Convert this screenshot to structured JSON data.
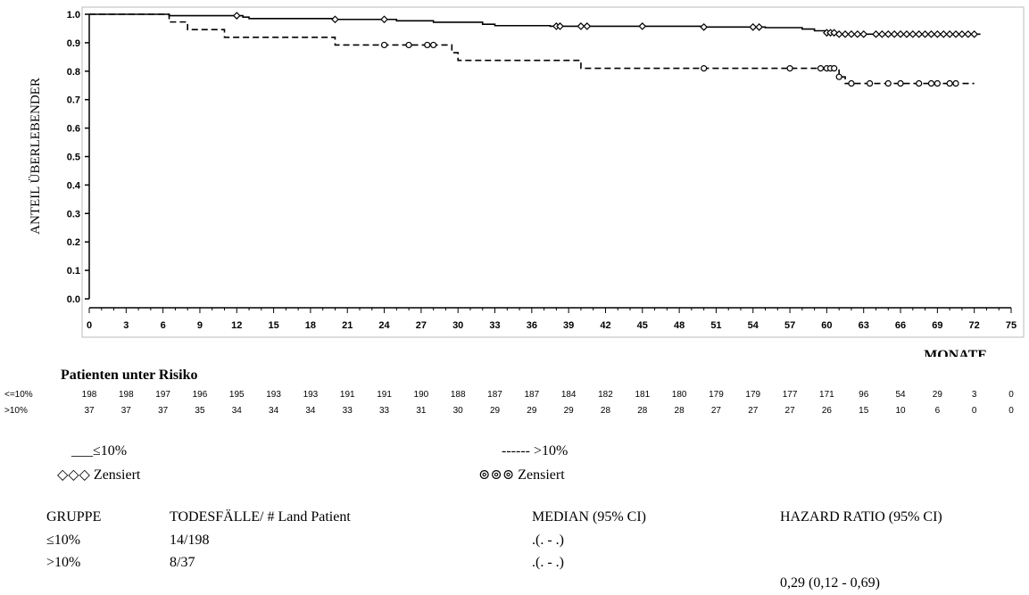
{
  "chart_data": {
    "type": "line",
    "ylabel": "ANTEIL ÜBERLEBENDER",
    "xlabel": "MONATE",
    "xlim": [
      0,
      75
    ],
    "ylim": [
      0.0,
      1.0
    ],
    "x_ticks": [
      0,
      3,
      6,
      9,
      12,
      15,
      18,
      21,
      24,
      27,
      30,
      33,
      36,
      39,
      42,
      45,
      48,
      51,
      54,
      57,
      60,
      63,
      66,
      69,
      72,
      75
    ],
    "y_ticks": [
      "1.0",
      "0.9",
      "0.8",
      "0.7",
      "0.6",
      "0.5",
      "0.4",
      "0.3",
      "0.2",
      "0.1",
      "0.0"
    ],
    "series": [
      {
        "name": "≤10%",
        "style": "solid",
        "color": "#000000",
        "points": [
          [
            0,
            1.0
          ],
          [
            6,
            1.0
          ],
          [
            6.5,
            0.995
          ],
          [
            12.5,
            0.99
          ],
          [
            13,
            0.985
          ],
          [
            20,
            0.982
          ],
          [
            25,
            0.977
          ],
          [
            28,
            0.972
          ],
          [
            32,
            0.965
          ],
          [
            33,
            0.96
          ],
          [
            37.5,
            0.958
          ],
          [
            50,
            0.955
          ],
          [
            55,
            0.953
          ],
          [
            58,
            0.948
          ],
          [
            59,
            0.942
          ],
          [
            60,
            0.935
          ],
          [
            61,
            0.93
          ],
          [
            72.5,
            0.93
          ]
        ],
        "censored": [
          12,
          20,
          24,
          38,
          38.3,
          40,
          40.5,
          45,
          50,
          54,
          54.5,
          60,
          60.3,
          60.6,
          61,
          61.5,
          62,
          62.5,
          63,
          64,
          64.5,
          65,
          65.5,
          66,
          66.5,
          67,
          67.5,
          68,
          68.5,
          69,
          69.5,
          70,
          70.5,
          71,
          71.5,
          72
        ]
      },
      {
        "name": ">10%",
        "style": "dashed",
        "color": "#000000",
        "points": [
          [
            0,
            1.0
          ],
          [
            6.5,
            1.0
          ],
          [
            6.5,
            0.973
          ],
          [
            8,
            0.973
          ],
          [
            8,
            0.946
          ],
          [
            11,
            0.946
          ],
          [
            11,
            0.919
          ],
          [
            20,
            0.919
          ],
          [
            20,
            0.892
          ],
          [
            29,
            0.892
          ],
          [
            29.5,
            0.865
          ],
          [
            30,
            0.838
          ],
          [
            40,
            0.838
          ],
          [
            40,
            0.81
          ],
          [
            60,
            0.81
          ],
          [
            61,
            0.78
          ],
          [
            61.5,
            0.757
          ],
          [
            72,
            0.757
          ]
        ],
        "censored": [
          24,
          26,
          27.5,
          28,
          50,
          57,
          59.5,
          60,
          60.3,
          60.6,
          61,
          62,
          63.5,
          65,
          66,
          67.5,
          68.5,
          69,
          70,
          70.5
        ]
      }
    ],
    "risk_table": {
      "title": "Patienten unter Risiko",
      "rows": [
        {
          "label": "<=10%",
          "values": [
            "198",
            "198",
            "197",
            "196",
            "195",
            "193",
            "193",
            "191",
            "191",
            "190",
            "188",
            "187",
            "187",
            "184",
            "182",
            "181",
            "180",
            "179",
            "179",
            "177",
            "171",
            "96",
            "54",
            "29",
            "3",
            "0"
          ]
        },
        {
          "label": ">10%",
          "values": [
            "37",
            "37",
            "37",
            "35",
            "34",
            "34",
            "34",
            "33",
            "33",
            "31",
            "30",
            "29",
            "29",
            "29",
            "28",
            "28",
            "28",
            "27",
            "27",
            "27",
            "26",
            "15",
            "10",
            "6",
            "0",
            "0"
          ]
        }
      ]
    },
    "legend": {
      "solid_label": "___≤10%",
      "solid_censor": "◇◇◇ Zensiert",
      "dashed_label": "------ >10%",
      "dashed_censor": "⊚⊚⊚ Zensiert"
    },
    "summary": {
      "headers": [
        "GRUPPE",
        "TODESFÄLLE/ # Land Patient",
        "MEDIAN (95% CI)",
        "HAZARD RATIO (95% CI)"
      ],
      "rows": [
        [
          "≤10%",
          "14/198",
          ".(. - .)"
        ],
        [
          ">10%",
          "8/37",
          ".(. - .)"
        ]
      ],
      "hazard_ratio": "0,29 (0,12 - 0,69)"
    }
  }
}
